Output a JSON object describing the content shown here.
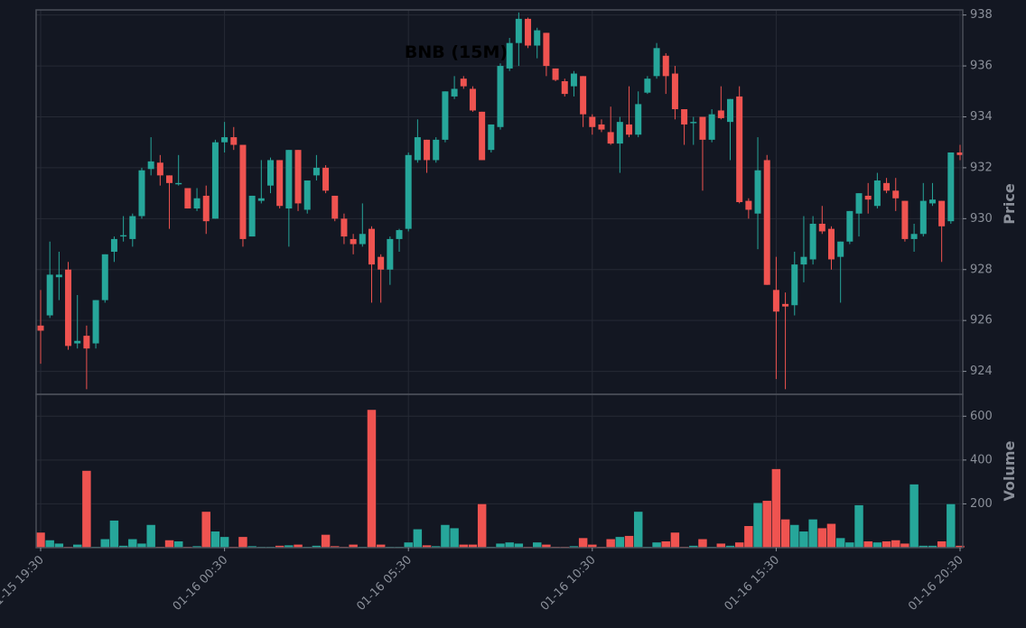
{
  "chart_data": {
    "type": "candlestick",
    "title": "BNB (15M)",
    "ylabel": "Price",
    "volume_label": "Volume",
    "up_color": "#26a69a",
    "down_color": "#ef5350",
    "grid": true,
    "categories": [
      "01-15 19:30",
      null,
      null,
      null,
      null,
      null,
      null,
      null,
      null,
      null,
      null,
      null,
      null,
      null,
      null,
      null,
      null,
      null,
      null,
      null,
      "01-16 00:30",
      null,
      null,
      null,
      null,
      null,
      null,
      null,
      null,
      null,
      null,
      null,
      null,
      null,
      null,
      null,
      null,
      null,
      null,
      null,
      "01-16 05:30",
      null,
      null,
      null,
      null,
      null,
      null,
      null,
      null,
      null,
      null,
      null,
      null,
      null,
      null,
      null,
      null,
      null,
      null,
      null,
      "01-16 10:30",
      null,
      null,
      null,
      null,
      null,
      null,
      null,
      null,
      null,
      null,
      null,
      null,
      null,
      null,
      null,
      null,
      null,
      null,
      null,
      "01-16 15:30",
      null,
      null,
      null,
      null,
      null,
      null,
      null,
      null,
      null,
      null,
      null,
      null,
      null,
      null,
      null,
      null,
      null,
      null,
      null,
      "01-16 20:30"
    ],
    "open": [
      925.8,
      926.2,
      927.7,
      928,
      925.1,
      925.4,
      925.1,
      926.8,
      928.7,
      929.3,
      929.2,
      930.1,
      931.95,
      932.2,
      931.7,
      931.35,
      931.2,
      930.4,
      930.9,
      930,
      933,
      933.2,
      932.9,
      929.3,
      930.7,
      931.3,
      932.3,
      930.4,
      932.7,
      930.35,
      931.7,
      932,
      930.9,
      930,
      929.2,
      929,
      929.6,
      928.5,
      928,
      929.2,
      929.6,
      932.3,
      933.1,
      932.3,
      933.1,
      934.8,
      935.5,
      935.1,
      934.2,
      932.7,
      933.6,
      935.9,
      936.9,
      937.85,
      936.8,
      937.3,
      935.9,
      935.4,
      935.2,
      935.6,
      934,
      933.7,
      933.4,
      932.95,
      933.7,
      933.3,
      934.95,
      935.6,
      936.4,
      935.7,
      934.3,
      933.75,
      934,
      933.1,
      934.25,
      933.8,
      934.8,
      930.7,
      930.2,
      932.3,
      927.2,
      926.65,
      926.6,
      928.2,
      928.4,
      929.8,
      929.6,
      928.5,
      929.1,
      930.2,
      930.9,
      930.5,
      931.4,
      931.1,
      930.7,
      929.2,
      929.4,
      930.6,
      930.7,
      929.9,
      932.6
    ],
    "high": [
      927.2,
      929.1,
      928.7,
      928.3,
      927,
      925.8,
      926.8,
      928.6,
      929.3,
      930.1,
      930.2,
      932,
      933.2,
      932.5,
      931.7,
      932.5,
      931.2,
      931.2,
      931.3,
      933.1,
      933.8,
      933.6,
      932.9,
      930.9,
      932.3,
      932.4,
      932.3,
      932.7,
      932.7,
      931.5,
      932.5,
      932.1,
      930.9,
      930.2,
      929.4,
      930.6,
      929.7,
      928.6,
      929.3,
      929.6,
      932.6,
      933.9,
      933.1,
      933.2,
      935,
      935.6,
      935.6,
      935.2,
      934.2,
      933.7,
      936.1,
      937.1,
      938.1,
      937.9,
      937.5,
      937.3,
      935.9,
      935.5,
      935.8,
      935.6,
      934.1,
      933.9,
      934.4,
      934,
      935.2,
      935,
      935.6,
      936.9,
      936.5,
      936,
      934.3,
      934,
      934,
      934.3,
      935.2,
      934.7,
      935.2,
      930.8,
      933.2,
      932.5,
      928.5,
      927.1,
      928.7,
      930.1,
      930.1,
      930.5,
      929.7,
      929.1,
      930.3,
      931,
      931.4,
      931.8,
      931.6,
      931.6,
      930.7,
      929.8,
      931.4,
      931.4,
      930.7,
      932.6,
      932.9
    ],
    "low": [
      924.3,
      926.1,
      926.8,
      924.85,
      924.9,
      923.3,
      924.9,
      926.7,
      928.3,
      929.1,
      928.9,
      930,
      931.7,
      931.3,
      929.6,
      931.3,
      930.4,
      930.3,
      929.4,
      930,
      932.6,
      932.7,
      928.9,
      929.3,
      930.6,
      931,
      930.4,
      928.9,
      930.3,
      930.2,
      931.5,
      931,
      929.9,
      929,
      928.6,
      928.9,
      926.7,
      926.7,
      927.4,
      928.7,
      929.5,
      932.2,
      931.8,
      932.2,
      933,
      934.7,
      935.1,
      934.2,
      932.3,
      932.6,
      933.5,
      935.8,
      936,
      936.7,
      936.3,
      935.6,
      935.4,
      934.8,
      934.8,
      933.6,
      933.3,
      933.4,
      932.9,
      931.8,
      933.2,
      933.2,
      934.9,
      935.5,
      934.9,
      933.9,
      932.9,
      932.9,
      931.1,
      933,
      933.9,
      932.3,
      930.6,
      930,
      928.8,
      927.4,
      923.7,
      923.3,
      926.2,
      927.5,
      928.2,
      929.4,
      928,
      926.7,
      929,
      929.3,
      930.2,
      930.4,
      931,
      930.3,
      929.1,
      928.7,
      929.3,
      930.5,
      928.3,
      929.8,
      932.3
    ],
    "close": [
      925.6,
      927.8,
      927.8,
      925,
      925.2,
      924.9,
      926.8,
      928.6,
      929.2,
      929.35,
      930.1,
      931.9,
      932.25,
      931.7,
      931.4,
      931.4,
      930.4,
      930.8,
      929.9,
      933,
      933.2,
      932.9,
      929.2,
      930.9,
      930.8,
      932.3,
      930.5,
      932.7,
      930.6,
      931.5,
      932,
      931.1,
      930,
      929.3,
      929,
      929.4,
      928.2,
      928,
      929.2,
      929.55,
      932.5,
      933.2,
      932.3,
      933.1,
      935,
      935.1,
      935.2,
      934.25,
      932.3,
      933.7,
      936,
      936.9,
      937.85,
      936.8,
      937.4,
      936,
      935.45,
      934.9,
      935.7,
      934.1,
      933.6,
      933.5,
      932.95,
      933.8,
      933.3,
      934.5,
      935.5,
      936.7,
      935.6,
      934.3,
      933.7,
      933.8,
      933.1,
      934.1,
      933.95,
      934.7,
      930.65,
      930.35,
      931.9,
      927.4,
      926.35,
      926.55,
      928.2,
      928.5,
      929.8,
      929.5,
      928.4,
      929.1,
      930.3,
      931,
      930.75,
      931.5,
      931.1,
      930.8,
      929.2,
      929.4,
      930.7,
      930.75,
      929.7,
      932.6,
      932.5
    ],
    "volume": [
      70,
      35,
      20,
      5,
      15,
      352,
      5,
      40,
      125,
      10,
      40,
      20,
      105,
      5,
      35,
      30,
      5,
      8,
      165,
      75,
      50,
      5,
      50,
      8,
      5,
      5,
      10,
      12,
      15,
      5,
      10,
      60,
      8,
      5,
      15,
      5,
      630,
      15,
      5,
      5,
      25,
      85,
      12,
      8,
      105,
      90,
      15,
      15,
      200,
      5,
      20,
      25,
      20,
      5,
      25,
      15,
      5,
      5,
      8,
      45,
      15,
      5,
      40,
      50,
      55,
      165,
      5,
      25,
      30,
      70,
      5,
      10,
      40,
      5,
      20,
      10,
      25,
      100,
      205,
      215,
      360,
      130,
      105,
      75,
      130,
      90,
      110,
      45,
      25,
      195,
      30,
      25,
      30,
      35,
      20,
      290,
      10,
      10,
      30,
      200,
      10
    ],
    "ylim": [
      923.1,
      938.2
    ],
    "yticks": [
      924,
      926,
      928,
      930,
      932,
      934,
      936,
      938
    ],
    "volume_ylim": [
      0,
      700
    ],
    "volume_yticks": [
      200,
      400,
      600
    ]
  }
}
